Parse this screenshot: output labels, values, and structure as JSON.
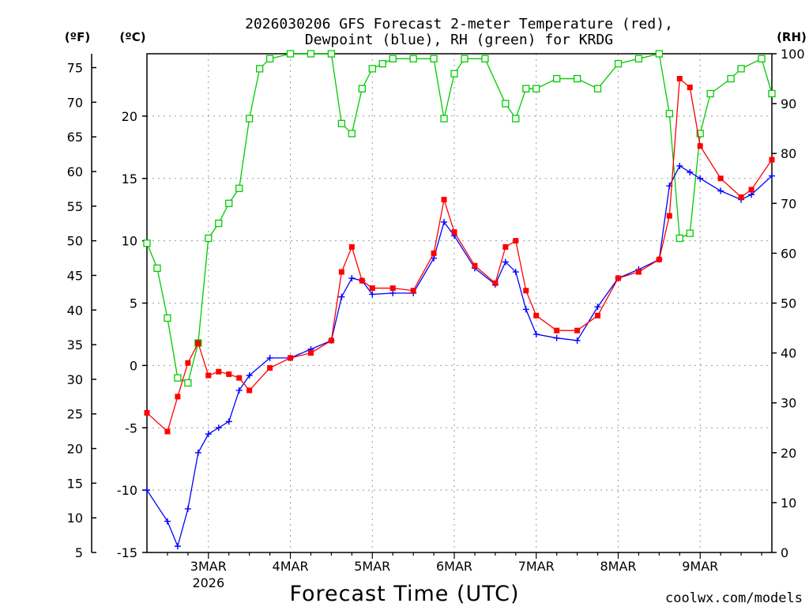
{
  "chart_data": {
    "type": "line",
    "title_line1": "2026030206 GFS Forecast 2-meter Temperature (red),",
    "title_line2": "Dewpoint (blue), RH (green) for KRDG",
    "left_axis_f_label": "(ºF)",
    "left_axis_c_label": "(ºC)",
    "right_axis_label": "(RH)",
    "xlabel": "Forecast Time (UTC)",
    "credit": "coolwx.com/models",
    "x_unit": "days since 2026-03-02 00Z",
    "xlim": [
      0.25,
      7.875
    ],
    "ylim_c": [
      -15,
      25
    ],
    "ylim_rh": [
      0,
      100
    ],
    "x_ticks": [
      {
        "x": 1,
        "label": "3MAR",
        "sub": "2026"
      },
      {
        "x": 2,
        "label": "4MAR"
      },
      {
        "x": 3,
        "label": "5MAR"
      },
      {
        "x": 4,
        "label": "6MAR"
      },
      {
        "x": 5,
        "label": "7MAR"
      },
      {
        "x": 6,
        "label": "8MAR"
      },
      {
        "x": 7,
        "label": "9MAR"
      }
    ],
    "y_ticks_c": [
      -15,
      -10,
      -5,
      0,
      5,
      10,
      15,
      20
    ],
    "y_ticks_f": [
      5,
      10,
      15,
      20,
      25,
      30,
      35,
      40,
      45,
      50,
      55,
      60,
      65,
      70,
      75
    ],
    "y_ticks_rh": [
      0,
      10,
      20,
      30,
      40,
      50,
      60,
      70,
      80,
      90,
      100
    ],
    "colors": {
      "temperature": "#ff0000",
      "dewpoint": "#0000ff",
      "rh": "#00cc00",
      "credit": "#cc0000",
      "grid": "#999999"
    },
    "series": [
      {
        "name": "Temperature (red)",
        "unit": "C",
        "marker": "filled-square",
        "x": [
          0.25,
          0.5,
          0.625,
          0.75,
          0.875,
          1.0,
          1.125,
          1.25,
          1.375,
          1.5,
          1.75,
          2.0,
          2.25,
          2.5,
          2.625,
          2.75,
          2.875,
          3.0,
          3.25,
          3.5,
          3.75,
          3.875,
          4.0,
          4.25,
          4.5,
          4.625,
          4.75,
          4.875,
          5.0,
          5.25,
          5.5,
          5.75,
          6.0,
          6.25,
          6.5,
          6.625,
          6.75,
          6.875,
          7.0,
          7.25,
          7.5,
          7.625,
          7.875
        ],
        "values": [
          -3.8,
          -5.3,
          -2.5,
          0.2,
          1.8,
          -0.8,
          -0.5,
          -0.7,
          -1.0,
          -2.0,
          -0.2,
          0.6,
          1.0,
          2.0,
          7.5,
          9.5,
          6.8,
          6.2,
          6.2,
          6.0,
          9.0,
          13.3,
          10.7,
          8.0,
          6.6,
          9.5,
          10.0,
          6.0,
          4.0,
          2.8,
          2.8,
          4.0,
          7.0,
          7.5,
          8.5,
          12.0,
          23.0,
          22.3,
          17.6,
          15.0,
          13.5,
          14.1,
          16.5
        ]
      },
      {
        "name": "Dewpoint (blue)",
        "unit": "C",
        "marker": "plus",
        "x": [
          0.25,
          0.5,
          0.625,
          0.75,
          0.875,
          1.0,
          1.125,
          1.25,
          1.375,
          1.5,
          1.75,
          2.0,
          2.25,
          2.5,
          2.625,
          2.75,
          2.875,
          3.0,
          3.25,
          3.5,
          3.75,
          3.875,
          4.0,
          4.25,
          4.5,
          4.625,
          4.75,
          4.875,
          5.0,
          5.25,
          5.5,
          5.75,
          6.0,
          6.25,
          6.5,
          6.625,
          6.75,
          6.875,
          7.0,
          7.25,
          7.5,
          7.625,
          7.875
        ],
        "values": [
          -10.0,
          -12.5,
          -14.5,
          -11.5,
          -7.0,
          -5.5,
          -5.0,
          -4.5,
          -2.0,
          -0.8,
          0.6,
          0.6,
          1.3,
          2.0,
          5.5,
          7.0,
          6.8,
          5.7,
          5.8,
          5.8,
          8.6,
          11.5,
          10.4,
          7.8,
          6.5,
          8.3,
          7.5,
          4.5,
          2.5,
          2.2,
          2.0,
          4.7,
          7.0,
          7.7,
          8.5,
          14.4,
          16.0,
          15.5,
          15.0,
          14.0,
          13.3,
          13.7,
          15.2
        ]
      },
      {
        "name": "RH (green)",
        "unit": "%",
        "marker": "open-square",
        "x": [
          0.25,
          0.375,
          0.5,
          0.625,
          0.75,
          0.875,
          1.0,
          1.125,
          1.25,
          1.375,
          1.5,
          1.625,
          1.75,
          2.0,
          2.25,
          2.5,
          2.625,
          2.75,
          2.875,
          3.0,
          3.125,
          3.25,
          3.5,
          3.75,
          3.875,
          4.0,
          4.125,
          4.375,
          4.625,
          4.75,
          4.875,
          5.0,
          5.25,
          5.5,
          5.75,
          6.0,
          6.25,
          6.5,
          6.625,
          6.75,
          6.875,
          7.0,
          7.125,
          7.375,
          7.5,
          7.75,
          7.875
        ],
        "values": [
          62,
          57,
          47,
          35,
          34,
          42,
          63,
          66,
          70,
          73,
          87,
          97,
          99,
          100,
          100,
          100,
          86,
          84,
          93,
          97,
          98,
          99,
          99,
          99,
          87,
          96,
          99,
          99,
          90,
          87,
          93,
          93,
          95,
          95,
          93,
          98,
          99,
          100,
          88,
          63,
          64,
          84,
          92,
          95,
          97,
          99,
          92
        ]
      }
    ]
  }
}
